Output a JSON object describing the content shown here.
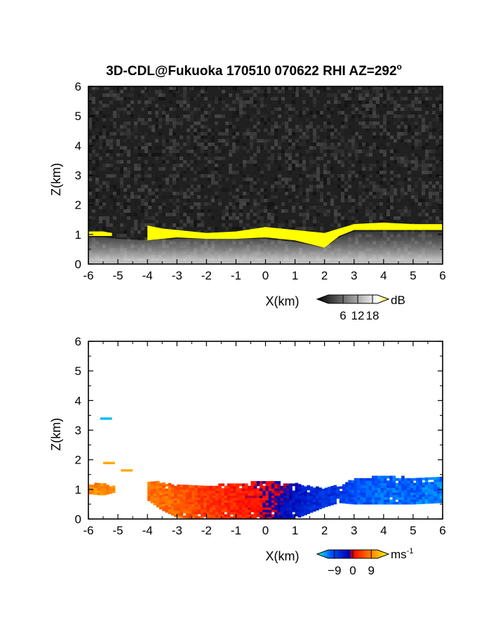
{
  "title": "3D-CDL@Fukuoka 170510 070622 RHI AZ=292",
  "title_degree": "o",
  "chart_data": [
    {
      "type": "heatmap",
      "quantity": "backscatter intensity",
      "xlabel": "X(km)",
      "ylabel": "Z(km)",
      "xlim": [
        -6,
        6
      ],
      "ylim": [
        0,
        6
      ],
      "xticks": [
        "-6",
        "-5",
        "-4",
        "-3",
        "-2",
        "-1",
        "0",
        "1",
        "2",
        "3",
        "4",
        "5",
        "6"
      ],
      "yticks": [
        "0",
        "1",
        "2",
        "3",
        "4",
        "5",
        "6"
      ],
      "colorbar": {
        "unit": "dB",
        "ticks": [
          "6",
          "12",
          "18"
        ],
        "range": [
          0,
          20
        ],
        "colors": [
          "#000000",
          "#ffffff",
          "#ffff00"
        ]
      },
      "yellow_layer_top_km": [
        [
          -6.0,
          1.1
        ],
        [
          -5.5,
          1.1
        ],
        [
          -5.2,
          1.05
        ],
        [
          -4.5,
          null
        ],
        [
          -4.0,
          1.3
        ],
        [
          -3.5,
          1.2
        ],
        [
          -3.0,
          1.15
        ],
        [
          -2.0,
          1.05
        ],
        [
          -1.0,
          1.1
        ],
        [
          0.0,
          1.25
        ],
        [
          1.0,
          1.15
        ],
        [
          2.0,
          1.05
        ],
        [
          2.5,
          1.2
        ],
        [
          3.0,
          1.35
        ],
        [
          4.0,
          1.4
        ],
        [
          5.0,
          1.35
        ],
        [
          6.0,
          1.35
        ]
      ],
      "yellow_layer_bottom_km": [
        [
          -6.0,
          0.95
        ],
        [
          -5.5,
          0.95
        ],
        [
          -5.2,
          0.95
        ],
        [
          -4.5,
          null
        ],
        [
          -4.0,
          0.8
        ],
        [
          -3.5,
          0.85
        ],
        [
          -3.0,
          0.9
        ],
        [
          -2.0,
          0.85
        ],
        [
          -1.0,
          0.85
        ],
        [
          0.0,
          0.9
        ],
        [
          1.0,
          0.8
        ],
        [
          2.0,
          0.55
        ],
        [
          2.5,
          0.95
        ],
        [
          3.0,
          1.15
        ],
        [
          4.0,
          1.15
        ],
        [
          5.0,
          1.15
        ],
        [
          6.0,
          1.15
        ]
      ],
      "aerosol_top_km": [
        [
          -6.0,
          0.9
        ],
        [
          -5.5,
          0.9
        ],
        [
          -5.0,
          0.85
        ],
        [
          -4.0,
          0.8
        ],
        [
          -3.0,
          0.85
        ],
        [
          -2.0,
          0.85
        ],
        [
          -1.0,
          0.85
        ],
        [
          0.0,
          0.85
        ],
        [
          1.0,
          0.75
        ],
        [
          2.0,
          0.55
        ],
        [
          2.5,
          0.9
        ],
        [
          3.0,
          1.1
        ],
        [
          4.0,
          1.1
        ],
        [
          5.0,
          1.1
        ],
        [
          6.0,
          1.1
        ]
      ]
    },
    {
      "type": "heatmap",
      "quantity": "radial velocity",
      "xlabel": "X(km)",
      "ylabel": "Z(km)",
      "xlim": [
        -6,
        6
      ],
      "ylim": [
        0,
        6
      ],
      "xticks": [
        "-6",
        "-5",
        "-4",
        "-3",
        "-2",
        "-1",
        "0",
        "1",
        "2",
        "3",
        "4",
        "5",
        "6"
      ],
      "yticks": [
        "0",
        "1",
        "2",
        "3",
        "4",
        "5",
        "6"
      ],
      "colorbar": {
        "unit": "ms",
        "unit_exponent": "-1",
        "ticks": [
          "-9",
          "0",
          "9"
        ],
        "range": [
          -12,
          12
        ],
        "colors": [
          "#00ffff",
          "#0050ff",
          "#0000aa",
          "#ff0000",
          "#ff8000",
          "#ffff00"
        ]
      },
      "velocity_ms": [
        [
          -6.0,
          7
        ],
        [
          -5.0,
          7
        ],
        [
          -4.0,
          6
        ],
        [
          -3.0,
          5
        ],
        [
          -2.0,
          3
        ],
        [
          -1.0,
          2
        ],
        [
          -0.2,
          1
        ],
        [
          0.2,
          -1
        ],
        [
          1.0,
          -3
        ],
        [
          2.0,
          -5
        ],
        [
          3.0,
          -7
        ],
        [
          4.0,
          -8
        ],
        [
          5.0,
          -8
        ],
        [
          6.0,
          -9
        ]
      ],
      "echo_top_km": [
        [
          -6.0,
          1.15
        ],
        [
          -5.5,
          1.15
        ],
        [
          -5.1,
          1.05
        ],
        [
          -4.5,
          null
        ],
        [
          -4.0,
          1.25
        ],
        [
          -3.0,
          1.15
        ],
        [
          -2.0,
          1.1
        ],
        [
          -1.0,
          1.15
        ],
        [
          0.0,
          1.25
        ],
        [
          1.0,
          1.15
        ],
        [
          2.0,
          1.0
        ],
        [
          2.5,
          1.1
        ],
        [
          3.0,
          1.3
        ],
        [
          4.0,
          1.45
        ],
        [
          5.0,
          1.35
        ],
        [
          6.0,
          1.35
        ]
      ],
      "echo_bottom_km": [
        [
          -6.0,
          0.85
        ],
        [
          -5.5,
          0.8
        ],
        [
          -5.1,
          0.9
        ],
        [
          -4.5,
          null
        ],
        [
          -4.0,
          0.65
        ],
        [
          -3.5,
          0.3
        ],
        [
          -3.0,
          0.05
        ],
        [
          -2.0,
          0.0
        ],
        [
          -1.0,
          0.0
        ],
        [
          0.0,
          0.0
        ],
        [
          1.0,
          0.0
        ],
        [
          2.0,
          0.4
        ],
        [
          2.5,
          0.55
        ],
        [
          3.0,
          0.5
        ],
        [
          4.0,
          0.5
        ],
        [
          5.0,
          0.5
        ],
        [
          6.0,
          0.55
        ]
      ],
      "isolated_echoes": [
        {
          "x": -5.6,
          "z": 3.35,
          "v": -10
        },
        {
          "x": -5.5,
          "z": 1.85,
          "v": 8
        },
        {
          "x": -4.9,
          "z": 1.6,
          "v": 8
        }
      ]
    }
  ]
}
